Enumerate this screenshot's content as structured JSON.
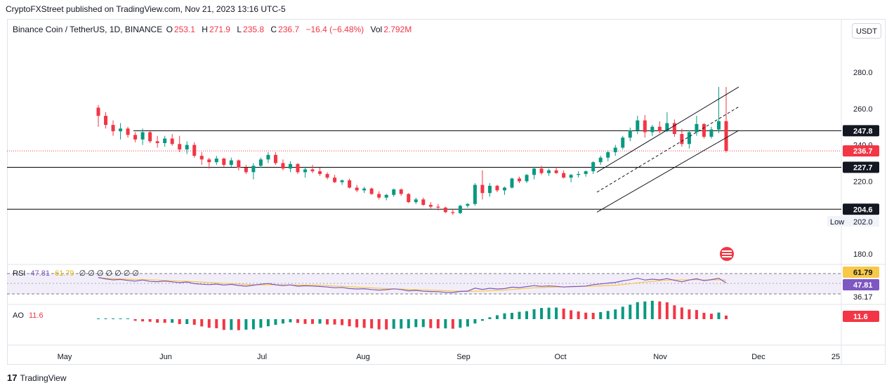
{
  "header": {
    "publisher": "CryptoFXStreet published on TradingView.com, Nov 21, 2023 13:16 UTC-5"
  },
  "legend": {
    "symbol": "Binance Coin / TetherUS, 1D, BINANCE",
    "open_label": "O",
    "open_value": "253.1",
    "high_label": "H",
    "high_value": "271.9",
    "low_label": "L",
    "low_value": "235.8",
    "close_label": "C",
    "close_value": "236.7",
    "change": "−16.4 (−6.48%)",
    "vol_label": "Vol",
    "vol_value": "2.792M"
  },
  "currency_button": "USDT",
  "rsi": {
    "name": "RSI",
    "value1": "47.81",
    "value2": "61.79",
    "extra": "∅ ∅ ∅ ∅ ∅ ∅ ∅",
    "axis_labels": [
      "61.79",
      "47.81",
      "36.17"
    ]
  },
  "ao": {
    "name": "AO",
    "value": "11.6",
    "axis_label": "11.6"
  },
  "branding": {
    "logo_text": "TradingView",
    "logo_mark": "17"
  },
  "colors": {
    "up": "#089981",
    "down": "#f23645",
    "rsi_line": "#7e57c2",
    "rsi_ma": "#f7c948",
    "rsi_band": "#ede7f6",
    "level_line": "#000000",
    "channel": "#131722",
    "ao_up": "#089981",
    "ao_down": "#f23645"
  },
  "chart_data": {
    "type": "candlestick",
    "symbol": "Binance Coin / TetherUS",
    "timeframe": "1D",
    "x_ticks": [
      "May",
      "Jun",
      "Jul",
      "Aug",
      "Sep",
      "Oct",
      "Nov",
      "Dec",
      "25"
    ],
    "y_ticks": [
      280.0,
      260.0,
      240.0,
      220.0,
      202.0,
      180.0
    ],
    "ylim": [
      173,
      307
    ],
    "price_labels": [
      {
        "text": "247.8",
        "value": 247.8,
        "style": "black"
      },
      {
        "text": "236.7",
        "value": 236.7,
        "style": "red"
      },
      {
        "text": "227.7",
        "value": 227.7,
        "style": "black"
      },
      {
        "text": "204.6",
        "value": 204.6,
        "style": "black"
      }
    ],
    "low_tag": {
      "label": "Low",
      "value": "202.0"
    },
    "horizontal_levels": [
      247.8,
      227.7,
      204.6
    ],
    "current_price": 236.7,
    "candles_ohlc": [
      [
        260.5,
        262.0,
        250.0,
        256.0
      ],
      [
        256.0,
        258.0,
        249.0,
        251.0
      ],
      [
        251.0,
        253.5,
        245.0,
        247.5
      ],
      [
        247.5,
        252.0,
        243.0,
        249.0
      ],
      [
        249.0,
        250.0,
        244.0,
        245.5
      ],
      [
        245.5,
        247.0,
        241.5,
        243.0
      ],
      [
        243.0,
        249.0,
        240.0,
        247.0
      ],
      [
        247.0,
        247.5,
        241.0,
        242.0
      ],
      [
        242.0,
        245.0,
        238.5,
        241.0
      ],
      [
        241.0,
        245.0,
        239.0,
        243.5
      ],
      [
        243.5,
        246.0,
        239.5,
        240.5
      ],
      [
        240.5,
        245.0,
        236.0,
        237.5
      ],
      [
        237.5,
        242.0,
        235.0,
        240.0
      ],
      [
        240.0,
        241.5,
        233.0,
        234.0
      ],
      [
        234.0,
        236.0,
        229.0,
        232.0
      ],
      [
        232.0,
        233.0,
        227.0,
        230.5
      ],
      [
        230.5,
        234.0,
        229.0,
        232.5
      ],
      [
        232.5,
        233.0,
        228.0,
        229.0
      ],
      [
        229.0,
        233.0,
        228.0,
        231.5
      ],
      [
        231.5,
        232.0,
        226.0,
        227.5
      ],
      [
        227.5,
        229.0,
        224.0,
        225.0
      ],
      [
        225.0,
        230.0,
        221.0,
        228.5
      ],
      [
        228.5,
        233.0,
        227.5,
        232.0
      ],
      [
        232.0,
        236.0,
        230.0,
        234.5
      ],
      [
        234.5,
        236.0,
        229.0,
        230.0
      ],
      [
        230.0,
        232.0,
        226.0,
        227.0
      ],
      [
        227.0,
        231.0,
        225.0,
        229.5
      ],
      [
        229.5,
        230.0,
        224.0,
        225.0
      ],
      [
        225.0,
        228.0,
        222.0,
        226.5
      ],
      [
        226.5,
        229.0,
        224.5,
        225.5
      ],
      [
        225.5,
        227.5,
        223.0,
        224.0
      ],
      [
        224.0,
        225.0,
        221.0,
        222.0
      ],
      [
        222.0,
        223.5,
        219.0,
        219.5
      ],
      [
        219.5,
        221.0,
        218.0,
        220.5
      ],
      [
        220.5,
        221.5,
        216.0,
        216.5
      ],
      [
        216.5,
        218.0,
        214.0,
        215.0
      ],
      [
        215.0,
        217.0,
        213.5,
        216.0
      ],
      [
        216.0,
        216.5,
        212.5,
        213.0
      ],
      [
        213.0,
        214.5,
        210.0,
        211.0
      ],
      [
        211.0,
        213.0,
        209.5,
        212.5
      ],
      [
        212.5,
        216.0,
        211.5,
        215.5
      ],
      [
        215.5,
        216.0,
        212.0,
        213.0
      ],
      [
        213.0,
        213.5,
        208.0,
        208.5
      ],
      [
        208.5,
        211.0,
        207.5,
        210.0
      ],
      [
        210.0,
        211.0,
        206.5,
        207.0
      ],
      [
        207.0,
        208.5,
        205.0,
        206.0
      ],
      [
        206.0,
        207.5,
        204.0,
        205.5
      ],
      [
        205.5,
        206.0,
        202.5,
        203.0
      ],
      [
        203.0,
        204.5,
        201.5,
        202.5
      ],
      [
        202.5,
        207.0,
        202.0,
        206.5
      ],
      [
        206.5,
        208.0,
        205.5,
        207.5
      ],
      [
        207.5,
        219.0,
        206.5,
        218.0
      ],
      [
        218.0,
        226.0,
        210.0,
        213.5
      ],
      [
        213.5,
        219.0,
        211.5,
        217.5
      ],
      [
        217.5,
        218.0,
        214.0,
        215.0
      ],
      [
        215.0,
        217.0,
        212.5,
        216.5
      ],
      [
        216.5,
        222.0,
        216.0,
        221.5
      ],
      [
        221.5,
        222.5,
        219.0,
        220.0
      ],
      [
        220.0,
        224.0,
        219.0,
        223.5
      ],
      [
        223.5,
        228.0,
        221.0,
        227.0
      ],
      [
        227.0,
        228.5,
        223.5,
        224.5
      ],
      [
        224.5,
        227.0,
        223.0,
        226.0
      ],
      [
        226.0,
        228.0,
        224.0,
        224.5
      ],
      [
        224.5,
        226.0,
        221.5,
        222.0
      ],
      [
        222.0,
        224.0,
        219.5,
        223.5
      ],
      [
        223.5,
        225.5,
        222.0,
        224.0
      ],
      [
        224.0,
        226.0,
        222.5,
        225.5
      ],
      [
        225.5,
        231.0,
        224.0,
        230.5
      ],
      [
        230.5,
        234.0,
        229.0,
        233.0
      ],
      [
        233.0,
        237.0,
        231.0,
        236.0
      ],
      [
        236.0,
        240.0,
        234.0,
        238.5
      ],
      [
        238.5,
        245.0,
        237.5,
        244.0
      ],
      [
        244.0,
        249.5,
        242.0,
        248.0
      ],
      [
        248.0,
        256.0,
        246.0,
        253.5
      ],
      [
        253.5,
        256.5,
        244.0,
        247.0
      ],
      [
        247.0,
        251.0,
        245.0,
        250.0
      ],
      [
        250.0,
        253.0,
        246.5,
        247.5
      ],
      [
        247.5,
        258.0,
        247.0,
        252.0
      ],
      [
        252.0,
        254.0,
        244.5,
        246.0
      ],
      [
        246.0,
        249.0,
        239.0,
        240.5
      ],
      [
        240.5,
        248.0,
        238.0,
        247.0
      ],
      [
        247.0,
        256.0,
        245.0,
        251.5
      ],
      [
        251.5,
        252.0,
        243.5,
        244.5
      ],
      [
        244.5,
        250.0,
        243.5,
        248.5
      ],
      [
        248.5,
        271.9,
        246.5,
        253.1
      ],
      [
        253.1,
        271.9,
        235.8,
        236.7
      ]
    ],
    "channel_upper": [
      [
        225.0,
        212.0
      ],
      [
        271.9,
        233.0
      ]
    ],
    "channel_lower": [
      [
        203.0,
        212.0
      ],
      [
        248.0,
        233.0
      ]
    ],
    "channel_mid": [
      [
        214.0,
        212.0
      ],
      [
        261.0,
        233.0
      ]
    ]
  }
}
